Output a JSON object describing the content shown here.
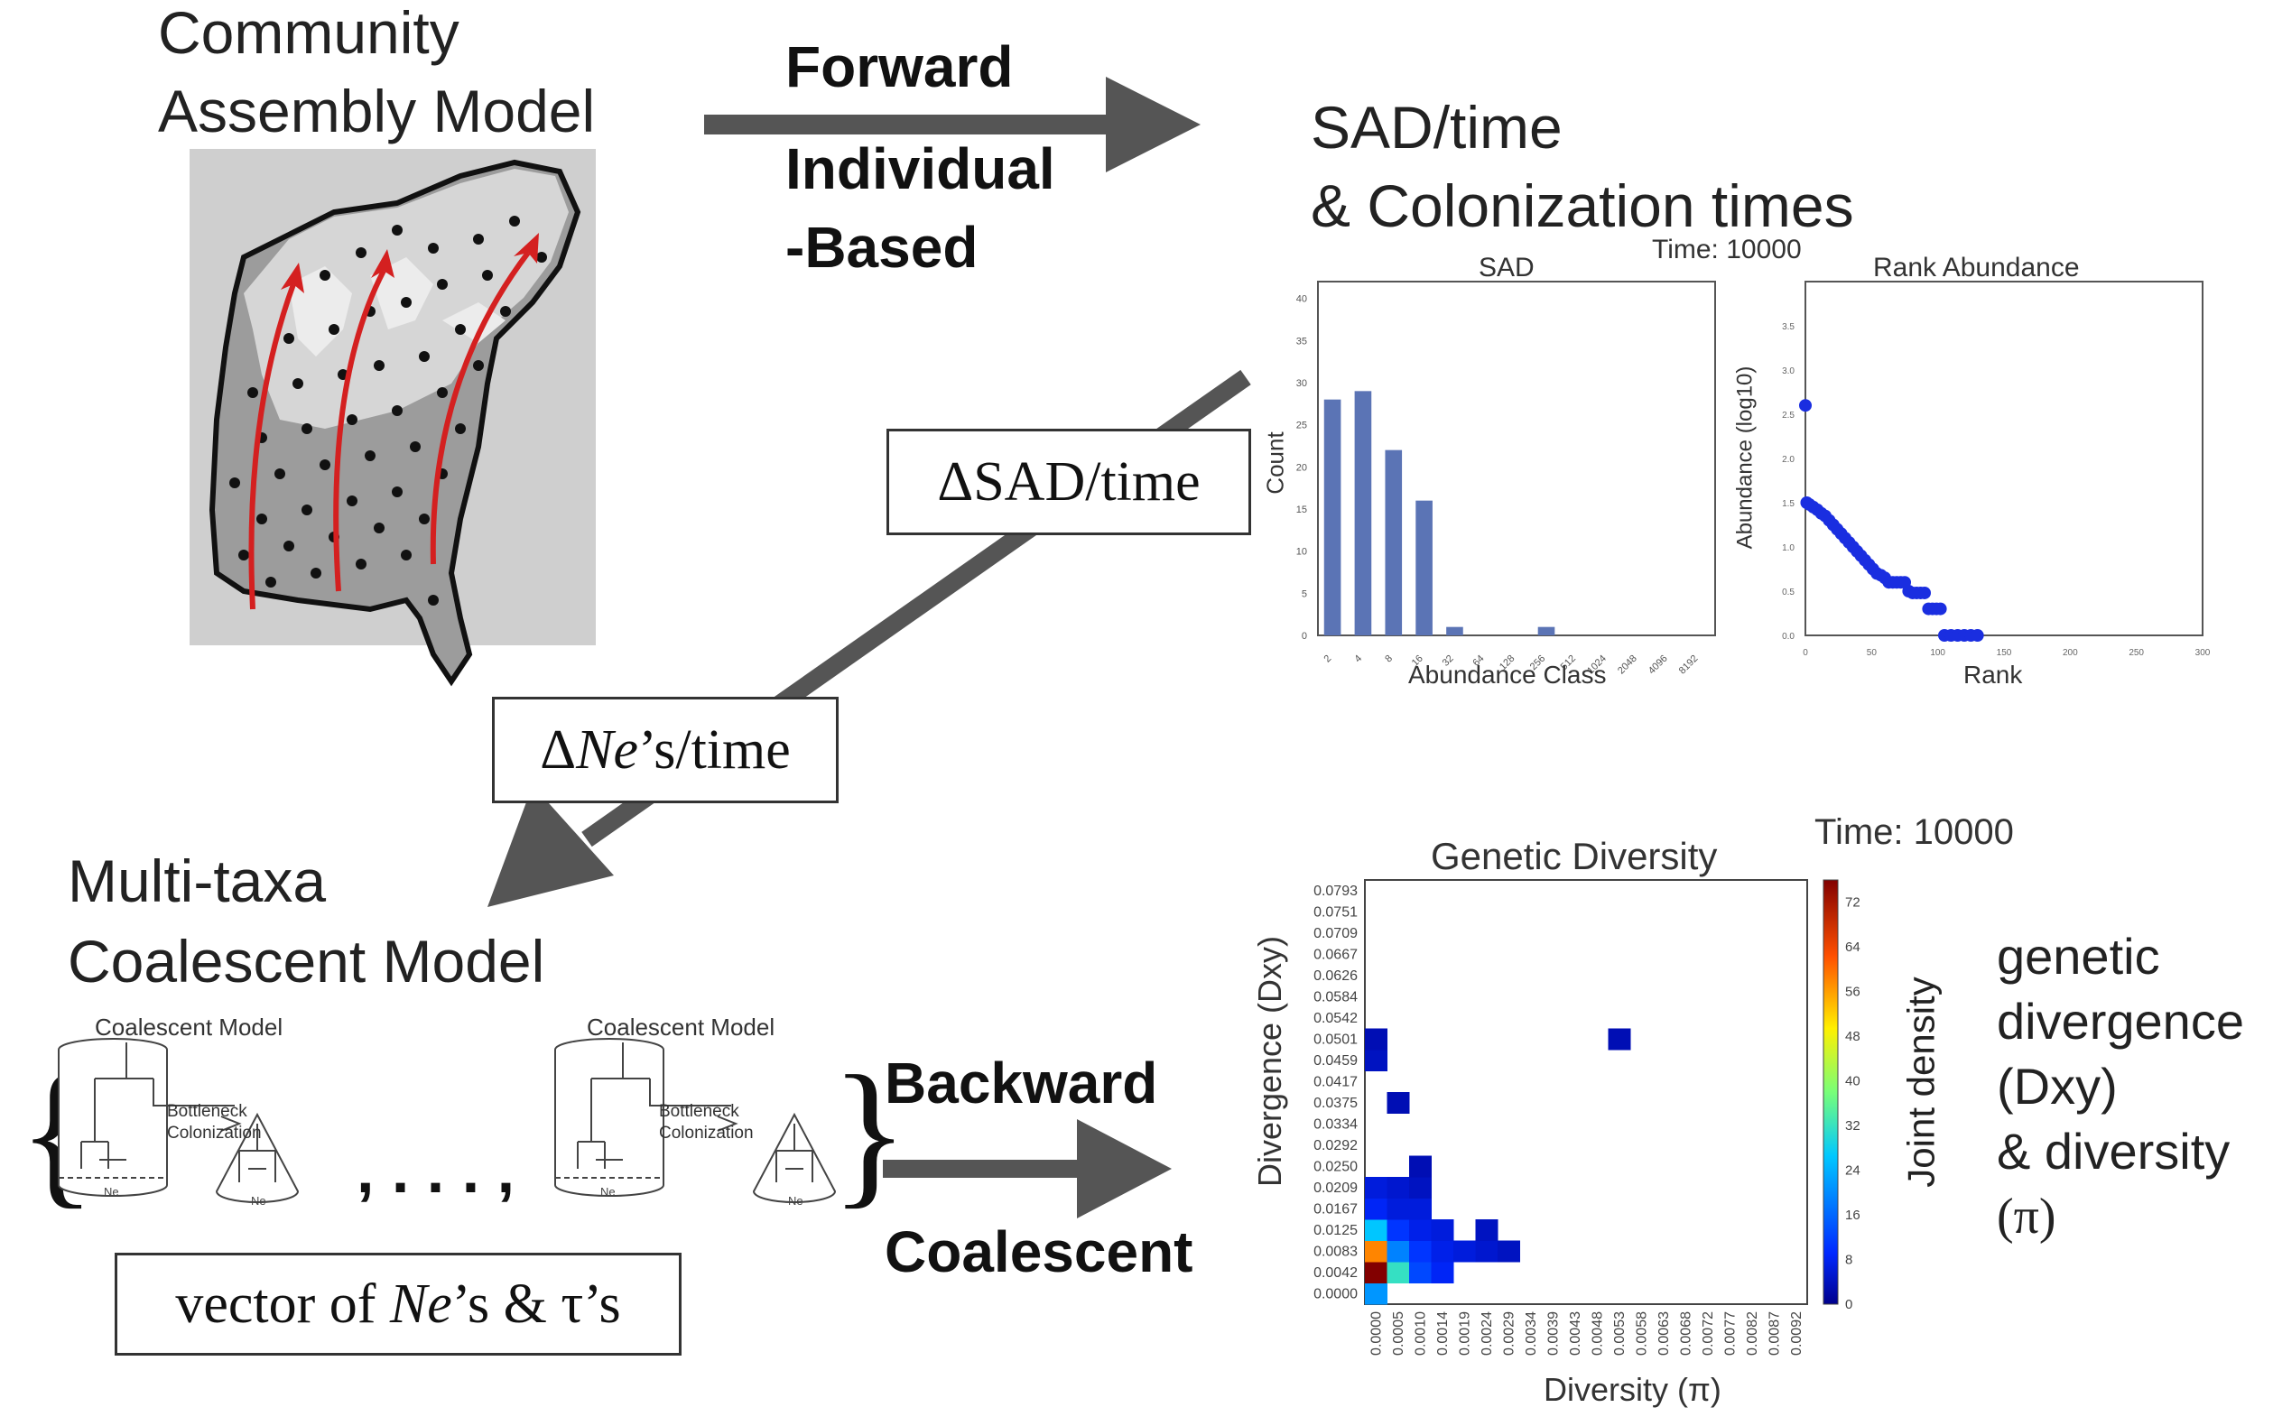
{
  "community": {
    "line1": "Community",
    "line2": "Assembly Model"
  },
  "forward": {
    "line1": "Forward",
    "line2": "Individual",
    "line3": "-Based"
  },
  "sad_header": {
    "line1": "SAD/time",
    "line2": "& Colonization times"
  },
  "delta_sad": "ΔSAD/time",
  "delta_ne": {
    "delta": "Δ",
    "ne": "Ne",
    "rest": "’s/time"
  },
  "multitaxa": {
    "line1": "Multi-taxa",
    "line2": "Coalescent Model"
  },
  "backward": {
    "line1": "Backward",
    "line2": "Coalescent"
  },
  "coalescent_panel": {
    "title": "Coalescent Model",
    "bottleneck": "Bottleneck",
    "colonization": "Colonization",
    "ne_label": "Ne",
    "ellipsis": ", . . . ,"
  },
  "vector": {
    "pre": "vector of ",
    "ne": "Ne",
    "mid1": "’s & ",
    "tau": "τ",
    "post": "’s"
  },
  "genetic_text": [
    "genetic",
    "divergence",
    "(Dxy)",
    "& diversity",
    "(π)"
  ],
  "colors": {
    "arrow": "#555555",
    "bar": "#5b74b5",
    "rank": "#1a2ee0",
    "map_dark": "#9a9a9a",
    "map_light": "#cfcfcf",
    "red": "#d42020"
  },
  "chart_data": [
    {
      "type": "bar",
      "title": "SAD",
      "time_label": "Time: 10000",
      "xlabel": "Abundance Class",
      "ylabel": "Count",
      "categories": [
        "2",
        "4",
        "8",
        "16",
        "32",
        "64",
        "128",
        "256",
        "512",
        "1024",
        "2048",
        "4096",
        "8192"
      ],
      "values": [
        28,
        29,
        22,
        16,
        1,
        0,
        0,
        1,
        0,
        0,
        0,
        0,
        0
      ],
      "ylim": [
        0,
        42
      ],
      "yticks": [
        "0",
        "5",
        "10",
        "15",
        "20",
        "25",
        "30",
        "35",
        "40"
      ]
    },
    {
      "type": "scatter",
      "title": "Rank Abundance",
      "xlabel": "Rank",
      "ylabel": "Abundance (log10)",
      "xlim": [
        0,
        300
      ],
      "ylim": [
        0,
        4.0
      ],
      "xticks": [
        "0",
        "50",
        "100",
        "150",
        "200",
        "250",
        "300"
      ],
      "yticks": [
        "0.0",
        "0.5",
        "1.0",
        "1.5",
        "2.0",
        "2.5",
        "3.0",
        "3.5"
      ],
      "points": [
        [
          0,
          2.6
        ],
        [
          1,
          1.5
        ],
        [
          3,
          1.48
        ],
        [
          6,
          1.45
        ],
        [
          9,
          1.42
        ],
        [
          12,
          1.38
        ],
        [
          15,
          1.35
        ],
        [
          18,
          1.3
        ],
        [
          21,
          1.25
        ],
        [
          24,
          1.2
        ],
        [
          27,
          1.15
        ],
        [
          30,
          1.1
        ],
        [
          33,
          1.05
        ],
        [
          36,
          1.0
        ],
        [
          39,
          0.95
        ],
        [
          42,
          0.9
        ],
        [
          45,
          0.85
        ],
        [
          48,
          0.8
        ],
        [
          51,
          0.75
        ],
        [
          54,
          0.7
        ],
        [
          57,
          0.68
        ],
        [
          60,
          0.65
        ],
        [
          63,
          0.6
        ],
        [
          66,
          0.6
        ],
        [
          69,
          0.6
        ],
        [
          72,
          0.6
        ],
        [
          75,
          0.6
        ],
        [
          78,
          0.5
        ],
        [
          81,
          0.48
        ],
        [
          84,
          0.48
        ],
        [
          87,
          0.48
        ],
        [
          90,
          0.48
        ],
        [
          93,
          0.3
        ],
        [
          96,
          0.3
        ],
        [
          99,
          0.3
        ],
        [
          102,
          0.3
        ],
        [
          105,
          0.0
        ],
        [
          110,
          0.0
        ],
        [
          115,
          0.0
        ],
        [
          120,
          0.0
        ],
        [
          125,
          0.0
        ],
        [
          130,
          0.0
        ]
      ]
    },
    {
      "type": "heatmap",
      "title": "Genetic Diversity",
      "time_label": "Time: 10000",
      "xlabel": "Diversity (π)",
      "ylabel": "Divergence (Dxy)",
      "colorbar_label": "Joint density",
      "colorbar_ticks": [
        "0",
        "8",
        "16",
        "24",
        "32",
        "40",
        "48",
        "56",
        "64",
        "72"
      ],
      "xticks": [
        "0.0000",
        "0.0005",
        "0.0010",
        "0.0014",
        "0.0019",
        "0.0024",
        "0.0029",
        "0.0034",
        "0.0039",
        "0.0043",
        "0.0048",
        "0.0053",
        "0.0058",
        "0.0063",
        "0.0068",
        "0.0072",
        "0.0077",
        "0.0082",
        "0.0087",
        "0.0092"
      ],
      "yticks": [
        "0.0000",
        "0.0042",
        "0.0083",
        "0.0125",
        "0.0167",
        "0.0209",
        "0.0250",
        "0.0292",
        "0.0334",
        "0.0375",
        "0.0417",
        "0.0459",
        "0.0501",
        "0.0542",
        "0.0584",
        "0.0626",
        "0.0667",
        "0.0709",
        "0.0751",
        "0.0793"
      ],
      "cells": [
        [
          0,
          0,
          20
        ],
        [
          0,
          1,
          72
        ],
        [
          0,
          2,
          55
        ],
        [
          0,
          3,
          25
        ],
        [
          0,
          4,
          8
        ],
        [
          0,
          5,
          6
        ],
        [
          0,
          11,
          4
        ],
        [
          0,
          12,
          3
        ],
        [
          1,
          1,
          30
        ],
        [
          1,
          2,
          18
        ],
        [
          1,
          3,
          10
        ],
        [
          1,
          4,
          6
        ],
        [
          1,
          5,
          5
        ],
        [
          1,
          9,
          3
        ],
        [
          2,
          1,
          12
        ],
        [
          2,
          2,
          10
        ],
        [
          2,
          3,
          7
        ],
        [
          2,
          4,
          6
        ],
        [
          2,
          5,
          4
        ],
        [
          2,
          6,
          3
        ],
        [
          3,
          1,
          8
        ],
        [
          3,
          2,
          7
        ],
        [
          3,
          3,
          6
        ],
        [
          4,
          2,
          6
        ],
        [
          5,
          2,
          5
        ],
        [
          5,
          3,
          4
        ],
        [
          6,
          2,
          4
        ],
        [
          11,
          12,
          3
        ]
      ]
    }
  ]
}
